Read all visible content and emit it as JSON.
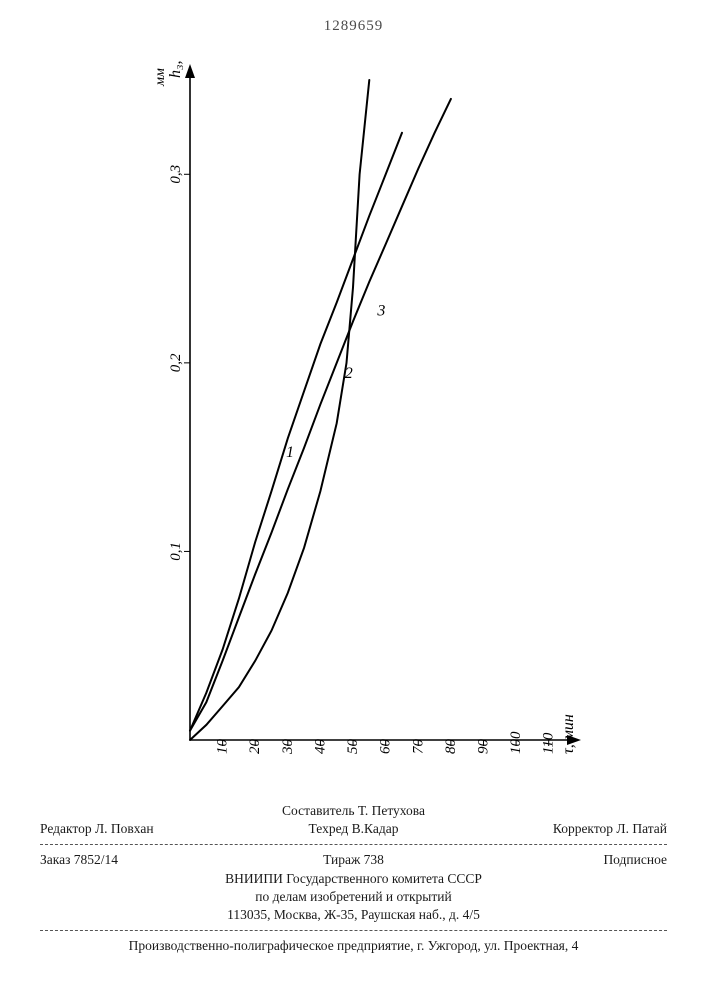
{
  "document_number": "1289659",
  "chart": {
    "type": "line",
    "background_color": "#ffffff",
    "axis_color": "#000000",
    "line_color": "#000000",
    "line_width": 2,
    "y_axis": {
      "title": "h₃,",
      "unit": "мм",
      "min": 0,
      "max": 0.35,
      "ticks": [
        0.1,
        0.2,
        0.3
      ],
      "tick_labels": [
        "0,1",
        "0,2",
        "0,3"
      ]
    },
    "x_axis": {
      "title": "τ, мин",
      "min": 0,
      "max": 115,
      "ticks": [
        10,
        20,
        30,
        40,
        50,
        60,
        70,
        80,
        90,
        100,
        110
      ],
      "tick_labels": [
        "10",
        "20",
        "30",
        "40",
        "50",
        "60",
        "70",
        "80",
        "90",
        "100",
        "110"
      ]
    },
    "curves": [
      {
        "name": "1",
        "points": [
          [
            0,
            0.005
          ],
          [
            5,
            0.025
          ],
          [
            10,
            0.048
          ],
          [
            15,
            0.075
          ],
          [
            20,
            0.105
          ],
          [
            25,
            0.132
          ],
          [
            30,
            0.16
          ],
          [
            35,
            0.185
          ],
          [
            40,
            0.21
          ],
          [
            45,
            0.232
          ],
          [
            50,
            0.255
          ],
          [
            55,
            0.278
          ],
          [
            60,
            0.3
          ],
          [
            65,
            0.322
          ]
        ]
      },
      {
        "name": "2",
        "points": [
          [
            0,
            0.005
          ],
          [
            5,
            0.02
          ],
          [
            10,
            0.042
          ],
          [
            15,
            0.065
          ],
          [
            20,
            0.088
          ],
          [
            25,
            0.11
          ],
          [
            30,
            0.133
          ],
          [
            35,
            0.155
          ],
          [
            40,
            0.178
          ],
          [
            45,
            0.2
          ],
          [
            50,
            0.222
          ],
          [
            55,
            0.243
          ],
          [
            60,
            0.263
          ],
          [
            65,
            0.283
          ],
          [
            70,
            0.303
          ],
          [
            75,
            0.322
          ],
          [
            80,
            0.34
          ]
        ]
      },
      {
        "name": "3",
        "points": [
          [
            0,
            0.0
          ],
          [
            5,
            0.008
          ],
          [
            10,
            0.018
          ],
          [
            15,
            0.028
          ],
          [
            20,
            0.042
          ],
          [
            25,
            0.058
          ],
          [
            30,
            0.078
          ],
          [
            35,
            0.102
          ],
          [
            40,
            0.132
          ],
          [
            45,
            0.168
          ],
          [
            48,
            0.2
          ],
          [
            50,
            0.24
          ],
          [
            52,
            0.3
          ],
          [
            55,
            0.35
          ]
        ]
      }
    ],
    "curve_labels": [
      {
        "text": "1",
        "at": [
          27,
          0.15
        ]
      },
      {
        "text": "2",
        "at": [
          45,
          0.192
        ]
      },
      {
        "text": "3",
        "at": [
          55,
          0.225
        ]
      }
    ],
    "y_label_fontsize": 15,
    "x_label_fontsize": 15,
    "title_fontsize": 16
  },
  "colophon": {
    "compiler": "Составитель Т. Петухова",
    "editor_left": "Редактор Л. Повхан",
    "techred_center": "Техред В.Кадар",
    "corrector_right": "Корректор Л. Патай",
    "order": "Заказ 7852/14",
    "circulation": "Тираж 738",
    "subscription": "Подписное",
    "org_line1": "ВНИИПИ Государственного комитета СССР",
    "org_line2": "по делам изобретений и открытий",
    "org_line3": "113035, Москва, Ж-35, Раушская наб., д. 4/5",
    "printer": "Производственно-полиграфическое предприятие, г. Ужгород, ул. Проектная, 4"
  }
}
